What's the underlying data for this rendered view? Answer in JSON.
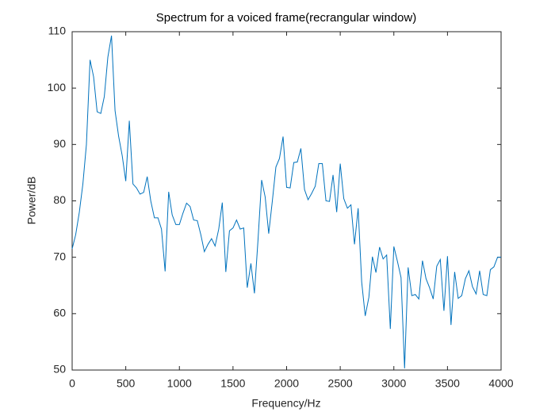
{
  "chart_data": {
    "type": "line",
    "title": "Spectrum for a voiced frame(recrangular window)",
    "xlabel": "Frequency/Hz",
    "ylabel": "Power/dB",
    "x": [
      0,
      33,
      67,
      100,
      133,
      167,
      200,
      233,
      267,
      300,
      333,
      367,
      400,
      433,
      467,
      500,
      533,
      567,
      600,
      633,
      667,
      700,
      733,
      767,
      800,
      833,
      867,
      900,
      933,
      967,
      1000,
      1033,
      1067,
      1100,
      1133,
      1167,
      1200,
      1233,
      1267,
      1300,
      1333,
      1367,
      1400,
      1433,
      1467,
      1500,
      1533,
      1567,
      1600,
      1633,
      1667,
      1700,
      1733,
      1767,
      1800,
      1833,
      1867,
      1900,
      1933,
      1967,
      2000,
      2033,
      2067,
      2100,
      2133,
      2167,
      2200,
      2233,
      2267,
      2300,
      2333,
      2367,
      2400,
      2433,
      2467,
      2500,
      2533,
      2567,
      2600,
      2633,
      2667,
      2700,
      2733,
      2767,
      2800,
      2833,
      2867,
      2900,
      2933,
      2967,
      3000,
      3033,
      3067,
      3100,
      3133,
      3167,
      3200,
      3233,
      3267,
      3300,
      3333,
      3367,
      3400,
      3433,
      3467,
      3500,
      3533,
      3567,
      3600,
      3633,
      3667,
      3700,
      3733,
      3767,
      3800,
      3833,
      3867,
      3900,
      3933,
      3967,
      4000
    ],
    "series": [
      {
        "color": "#0072bd",
        "values": [
          71.5,
          74,
          78,
          83,
          90,
          105,
          102,
          95.8,
          95.5,
          98.5,
          105.5,
          109.3,
          96,
          91.5,
          88,
          83.5,
          94.2,
          83,
          82.3,
          81.2,
          81.5,
          84.3,
          80,
          77,
          77,
          75,
          67.5,
          81.6,
          77.5,
          75.8,
          75.8,
          77.8,
          79.6,
          79,
          76.6,
          76.5,
          74,
          71,
          72.3,
          73.3,
          72,
          75,
          79.7,
          67.4,
          74.7,
          75.2,
          76.6,
          75,
          75.2,
          64.6,
          68.9,
          63.6,
          73,
          83.7,
          80.7,
          74.2,
          80,
          86,
          87.5,
          91.4,
          82.4,
          82.3,
          86.8,
          86.9,
          89.3,
          82,
          80.2,
          81.3,
          82.6,
          86.6,
          86.6,
          80,
          79.9,
          84.6,
          78,
          86.6,
          80.4,
          78.7,
          79.3,
          72.3,
          78.7,
          65.6,
          59.6,
          62.9,
          70.1,
          67.3,
          71.8,
          69.7,
          70.4,
          57.3,
          71.9,
          69.3,
          66.4,
          50.3,
          68.2,
          63.2,
          63.4,
          62.6,
          69.4,
          66.2,
          64.6,
          62.6,
          68.4,
          69.6,
          60.5,
          70.2,
          58,
          67.4,
          62.7,
          63.2,
          66.2,
          67.6,
          64.8,
          63.5,
          67.6,
          63.4,
          63.2,
          67.8,
          68.3,
          70,
          70
        ]
      }
    ],
    "xlim": [
      0,
      4000
    ],
    "xticks": [
      0,
      500,
      1000,
      1500,
      2000,
      2500,
      3000,
      3500,
      4000
    ],
    "ylim": [
      50,
      110
    ],
    "yticks": [
      50,
      60,
      70,
      80,
      90,
      100,
      110
    ],
    "grid": false
  }
}
